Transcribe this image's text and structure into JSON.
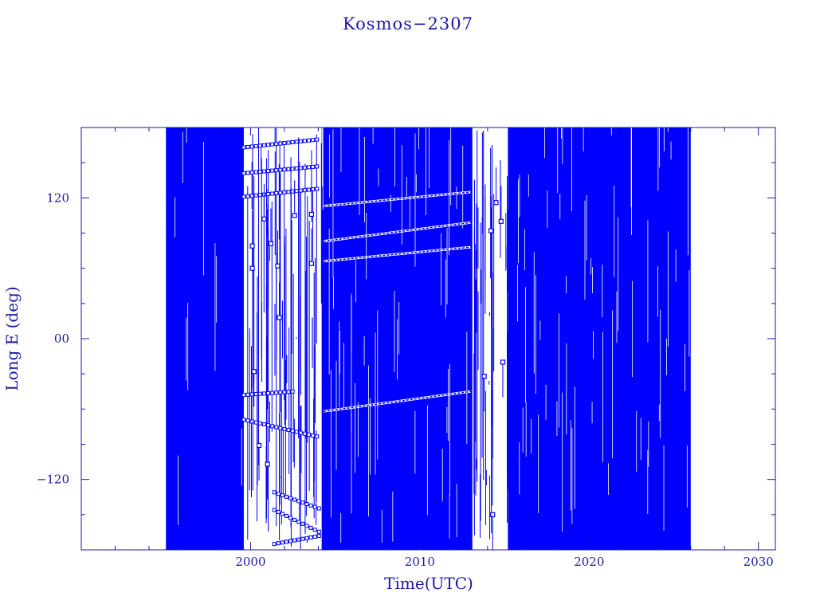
{
  "chart_data": {
    "type": "scatter",
    "title": "Kosmos−2307",
    "xlabel": "Time(UTC)",
    "ylabel": "Long E (deg)",
    "xlim": [
      1990,
      2031
    ],
    "ylim": [
      -180,
      180
    ],
    "x_ticks": [
      {
        "value": 2000,
        "label": "2000"
      },
      {
        "value": 2010,
        "label": "2010"
      },
      {
        "value": 2020,
        "label": "2020"
      },
      {
        "value": 2030,
        "label": "2030"
      }
    ],
    "y_ticks": [
      {
        "value": 120,
        "label": "120"
      },
      {
        "value": 0,
        "label": "00"
      },
      {
        "value": -120,
        "label": "−120"
      }
    ],
    "grid": false,
    "connected": true,
    "marker": "open-square",
    "data_span": [
      1995.0,
      2026.0
    ],
    "dense_coverage_spans": [
      [
        1995.0,
        1999.6
      ],
      [
        2004.2,
        2013.1
      ],
      [
        2015.2,
        2026.0
      ]
    ],
    "sparse_coverage_spans": [
      [
        1999.6,
        2004.2
      ],
      [
        2013.1,
        2015.2
      ]
    ],
    "longitude_tracks_sparse_period": [
      {
        "t0": 1999.6,
        "lon0": 121,
        "t1": 2004.1,
        "lon1": 128
      },
      {
        "t0": 1999.6,
        "lon0": 141,
        "t1": 2004.1,
        "lon1": 147
      },
      {
        "t0": 1999.6,
        "lon0": 163,
        "t1": 2004.1,
        "lon1": 170
      },
      {
        "t0": 1999.6,
        "lon0": -48,
        "t1": 2002.5,
        "lon1": -45
      },
      {
        "t0": 1999.6,
        "lon0": -69,
        "t1": 2004.1,
        "lon1": -84
      },
      {
        "t0": 2001.4,
        "lon0": -131,
        "t1": 2004.1,
        "lon1": -145
      },
      {
        "t0": 2001.4,
        "lon0": -146,
        "t1": 2004.1,
        "lon1": -165
      },
      {
        "t0": 2001.4,
        "lon0": -175,
        "t1": 2004.1,
        "lon1": -168
      }
    ],
    "longitude_tracks_dense_period": [
      {
        "t0": 2004.3,
        "lon0": 66,
        "t1": 2013.0,
        "lon1": 78
      },
      {
        "t0": 2004.3,
        "lon0": 83,
        "t1": 2013.0,
        "lon1": 99
      },
      {
        "t0": 2004.3,
        "lon0": 113,
        "t1": 2013.0,
        "lon1": 125
      },
      {
        "t0": 2004.3,
        "lon0": -62,
        "t1": 2013.0,
        "lon1": -45
      }
    ],
    "sparse_points": [
      {
        "x": 2000.1,
        "y": 60
      },
      {
        "x": 2000.1,
        "y": 79
      },
      {
        "x": 2000.2,
        "y": -28
      },
      {
        "x": 2000.8,
        "y": 102
      },
      {
        "x": 2001.2,
        "y": 81
      },
      {
        "x": 2001.6,
        "y": 62
      },
      {
        "x": 2001.7,
        "y": 18
      },
      {
        "x": 2002.6,
        "y": 105
      },
      {
        "x": 2003.6,
        "y": 106
      },
      {
        "x": 2003.6,
        "y": 64
      },
      {
        "x": 2000.5,
        "y": -91
      },
      {
        "x": 2001.0,
        "y": -107
      },
      {
        "x": 2014.2,
        "y": 92
      },
      {
        "x": 2014.5,
        "y": 116
      },
      {
        "x": 2014.8,
        "y": 100
      },
      {
        "x": 2013.8,
        "y": -32
      },
      {
        "x": 2014.3,
        "y": -150
      },
      {
        "x": 2014.9,
        "y": -20
      }
    ]
  }
}
